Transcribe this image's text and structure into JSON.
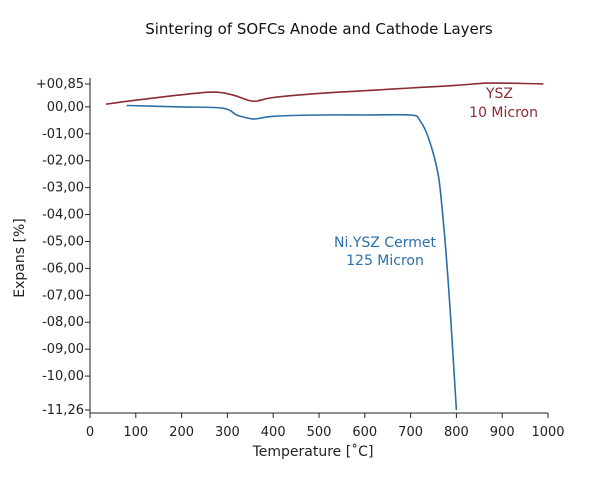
{
  "chart_data": {
    "type": "line",
    "title": "Sintering of SOFCs Anode and Cathode Layers",
    "xlabel": "Temperature [˚C]",
    "ylabel": "Expans [%]",
    "xlim": [
      0,
      1000
    ],
    "ylim": [
      -11.26,
      0.85
    ],
    "x_ticks": [
      0,
      100,
      200,
      300,
      400,
      500,
      600,
      700,
      800,
      900,
      1000
    ],
    "x_tick_labels": [
      "0",
      "100",
      "200",
      "300",
      "400",
      "500",
      "600",
      "700",
      "800",
      "900",
      "1000"
    ],
    "y_ticks": [
      0.85,
      0,
      -1,
      -2,
      -3,
      -4,
      -5,
      -6,
      -7,
      -8,
      -9,
      -10,
      -11.26
    ],
    "y_tick_labels": [
      "+00,85",
      "00,00",
      "-01,00",
      "-02,00",
      "-03,00",
      "-04,00",
      "-05,00",
      "-06,00",
      "-07,00",
      "-08,00",
      "-09,00",
      "-10,00",
      "-11,26"
    ],
    "grid": false,
    "series": [
      {
        "color": "#8a2c33",
        "x": [
          35,
          100,
          200,
          270,
          310,
          345,
          365,
          400,
          500,
          600,
          700,
          800,
          860,
          900,
          950,
          990
        ],
        "y": [
          0.1,
          0.25,
          0.45,
          0.55,
          0.45,
          0.25,
          0.22,
          0.35,
          0.5,
          0.6,
          0.7,
          0.8,
          0.88,
          0.88,
          0.87,
          0.85
        ]
      },
      {
        "color": "#2a6fa8",
        "x": [
          80,
          200,
          290,
          320,
          340,
          360,
          400,
          500,
          600,
          700,
          720,
          740,
          760,
          770,
          780,
          790,
          800
        ],
        "y": [
          0.05,
          0.0,
          -0.05,
          -0.3,
          -0.4,
          -0.45,
          -0.35,
          -0.3,
          -0.3,
          -0.3,
          -0.5,
          -1.2,
          -2.5,
          -4.0,
          -6.0,
          -8.5,
          -11.26
        ]
      }
    ],
    "annotations": [
      {
        "lines": [
          "YSZ",
          "10 Micron"
        ],
        "color": "#8a2c33"
      },
      {
        "lines": [
          "Ni.YSZ Cermet",
          "125 Micron"
        ],
        "color": "#2a6fa8"
      }
    ]
  }
}
